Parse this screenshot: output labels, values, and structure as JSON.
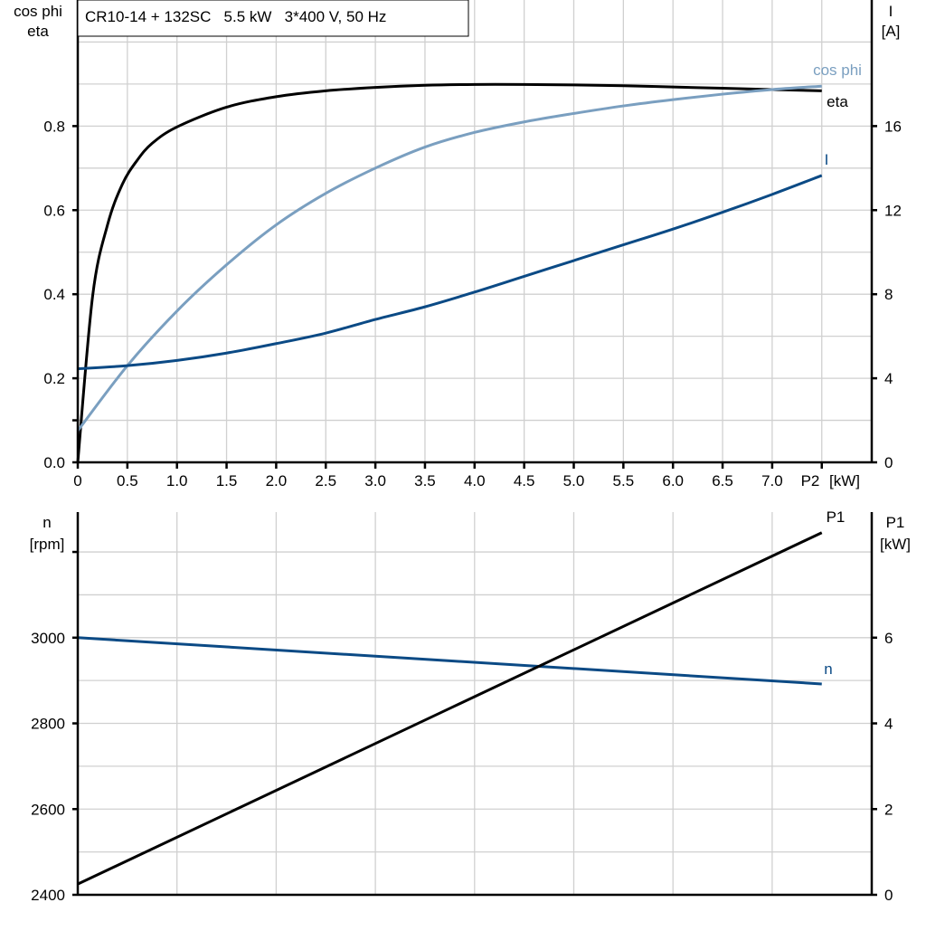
{
  "chart_data": [
    {
      "type": "line",
      "title": "CR10-14 + 132SC   5.5 kW   3*400 V, 50 Hz",
      "xlabel": "P2 [kW]",
      "xlabel_short": "P2",
      "xunit": "[kW]",
      "xlim": [
        0,
        8
      ],
      "xticks": [
        "0",
        "0.5",
        "1.0",
        "1.5",
        "2.0",
        "2.5",
        "3.0",
        "3.5",
        "4.0",
        "4.5",
        "5.0",
        "5.5",
        "6.0",
        "6.5",
        "7.0"
      ],
      "ylabel_left": [
        "cos phi",
        "eta"
      ],
      "ylim_left": [
        0,
        1.1
      ],
      "yticks_left": [
        "0.0",
        "0.2",
        "0.4",
        "0.6",
        "0.8"
      ],
      "ylabel_right": [
        "I",
        "[A]"
      ],
      "ylim_right": [
        0,
        22
      ],
      "yticks_right": [
        "0",
        "4",
        "8",
        "12",
        "16"
      ],
      "grid": true,
      "series": [
        {
          "name": "eta",
          "axis": "left",
          "color": "#000000",
          "x": [
            0,
            0.15,
            0.3,
            0.45,
            0.6,
            0.75,
            1.0,
            1.5,
            2.0,
            2.5,
            3.0,
            3.5,
            4.0,
            4.5,
            5.0,
            5.5,
            6.0,
            6.5,
            7.0,
            7.5
          ],
          "y": [
            0,
            0.396,
            0.565,
            0.662,
            0.719,
            0.759,
            0.798,
            0.845,
            0.87,
            0.884,
            0.892,
            0.897,
            0.899,
            0.899,
            0.898,
            0.896,
            0.893,
            0.89,
            0.887,
            0.884
          ]
        },
        {
          "name": "cos phi",
          "axis": "left",
          "color": "#7a9fc0",
          "x": [
            0,
            0.5,
            1.0,
            1.5,
            2.0,
            2.5,
            3.0,
            3.5,
            4.0,
            4.5,
            5.0,
            5.5,
            6.0,
            6.5,
            7.0,
            7.5
          ],
          "y": [
            0.075,
            0.23,
            0.36,
            0.47,
            0.565,
            0.64,
            0.7,
            0.75,
            0.785,
            0.81,
            0.83,
            0.848,
            0.863,
            0.876,
            0.887,
            0.895
          ]
        },
        {
          "name": "I",
          "axis": "right",
          "color": "#0b4a85",
          "x": [
            0,
            0.5,
            1.0,
            1.5,
            2.0,
            2.5,
            3.0,
            3.5,
            4.0,
            4.5,
            5.0,
            5.5,
            6.0,
            6.5,
            7.0,
            7.5
          ],
          "y": [
            4.45,
            4.6,
            4.85,
            5.2,
            5.65,
            6.15,
            6.8,
            7.4,
            8.1,
            8.85,
            9.6,
            10.35,
            11.1,
            11.9,
            12.75,
            13.65
          ]
        }
      ]
    },
    {
      "type": "line",
      "xlim": [
        0,
        8
      ],
      "ylabel_left": [
        "n",
        "[rpm]"
      ],
      "ylim_left": [
        2400,
        3293
      ],
      "yticks_left": [
        "2400",
        "2600",
        "2800",
        "3000"
      ],
      "ylabel_right": [
        "P1",
        "[kW]"
      ],
      "ylim_right": [
        0,
        8.93
      ],
      "yticks_right": [
        "0",
        "2",
        "4",
        "6"
      ],
      "grid": true,
      "series": [
        {
          "name": "n",
          "axis": "left",
          "color": "#0b4a85",
          "x": [
            0,
            7.5
          ],
          "y": [
            3000,
            2892
          ]
        },
        {
          "name": "P1",
          "axis": "right",
          "color": "#000000",
          "x": [
            0,
            7.5
          ],
          "y": [
            0.25,
            8.45
          ]
        }
      ]
    }
  ]
}
